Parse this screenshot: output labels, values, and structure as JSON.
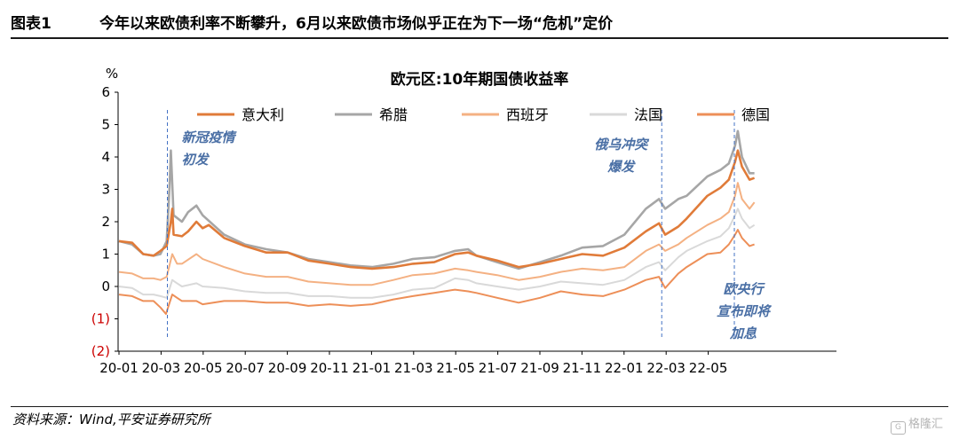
{
  "header": {
    "figure_number": "图表1",
    "figure_title": "今年以来欧债利率不断攀升，6月以来欧债市场似乎正在为下一场“危机”定价"
  },
  "footer": {
    "source": "资料来源：Wind,平安证券研究所",
    "watermark": "格隆汇",
    "watermark_icon": "gelonghui-logo-icon"
  },
  "chart_data": {
    "type": "line",
    "title": "欧元区:10年期国债收益率",
    "ylabel": "%",
    "ylim": [
      -2,
      6
    ],
    "yticks": [
      {
        "v": 6,
        "label": "6",
        "red": false
      },
      {
        "v": 5,
        "label": "5",
        "red": false
      },
      {
        "v": 4,
        "label": "4",
        "red": false
      },
      {
        "v": 3,
        "label": "3",
        "red": false
      },
      {
        "v": 2,
        "label": "2",
        "red": false
      },
      {
        "v": 1,
        "label": "1",
        "red": false
      },
      {
        "v": 0,
        "label": "0",
        "red": false
      },
      {
        "v": -1,
        "label": "(1)",
        "red": true
      },
      {
        "v": -2,
        "label": "(2)",
        "red": true
      }
    ],
    "xticks": [
      "20-01",
      "20-03",
      "20-05",
      "20-07",
      "20-09",
      "20-11",
      "21-01",
      "21-03",
      "21-05",
      "21-07",
      "21-09",
      "21-11",
      "22-01",
      "22-03",
      "22-05"
    ],
    "x_range": [
      "2020-01",
      "2022-07"
    ],
    "legend_position": "top",
    "grid": false,
    "series": [
      {
        "name": "意大利",
        "color": "#e07b39",
        "width": 2.6,
        "points": [
          [
            "2020-01-01",
            1.4
          ],
          [
            "2020-01-20",
            1.35
          ],
          [
            "2020-02-05",
            1.0
          ],
          [
            "2020-02-20",
            0.95
          ],
          [
            "2020-03-01",
            1.1
          ],
          [
            "2020-03-10",
            1.25
          ],
          [
            "2020-03-16",
            2.0
          ],
          [
            "2020-03-18",
            2.4
          ],
          [
            "2020-03-20",
            1.6
          ],
          [
            "2020-04-01",
            1.55
          ],
          [
            "2020-04-10",
            1.7
          ],
          [
            "2020-04-22",
            2.0
          ],
          [
            "2020-05-01",
            1.8
          ],
          [
            "2020-05-10",
            1.9
          ],
          [
            "2020-06-01",
            1.5
          ],
          [
            "2020-07-01",
            1.25
          ],
          [
            "2020-08-01",
            1.05
          ],
          [
            "2020-09-01",
            1.05
          ],
          [
            "2020-10-01",
            0.8
          ],
          [
            "2020-11-01",
            0.7
          ],
          [
            "2020-12-01",
            0.6
          ],
          [
            "2021-01-01",
            0.55
          ],
          [
            "2021-02-01",
            0.6
          ],
          [
            "2021-03-01",
            0.7
          ],
          [
            "2021-04-01",
            0.75
          ],
          [
            "2021-05-01",
            1.0
          ],
          [
            "2021-05-20",
            1.05
          ],
          [
            "2021-06-01",
            0.95
          ],
          [
            "2021-07-01",
            0.8
          ],
          [
            "2021-08-01",
            0.6
          ],
          [
            "2021-09-01",
            0.7
          ],
          [
            "2021-10-01",
            0.85
          ],
          [
            "2021-11-01",
            1.0
          ],
          [
            "2021-12-01",
            0.95
          ],
          [
            "2022-01-01",
            1.2
          ],
          [
            "2022-02-01",
            1.7
          ],
          [
            "2022-02-20",
            1.95
          ],
          [
            "2022-03-01",
            1.6
          ],
          [
            "2022-03-20",
            1.85
          ],
          [
            "2022-04-01",
            2.1
          ],
          [
            "2022-05-01",
            2.8
          ],
          [
            "2022-05-20",
            3.05
          ],
          [
            "2022-06-01",
            3.3
          ],
          [
            "2022-06-10",
            3.85
          ],
          [
            "2022-06-14",
            4.2
          ],
          [
            "2022-06-20",
            3.7
          ],
          [
            "2022-07-01",
            3.3
          ],
          [
            "2022-07-08",
            3.35
          ]
        ]
      },
      {
        "name": "希腊",
        "color": "#a6a6a6",
        "width": 2.6,
        "points": [
          [
            "2020-01-01",
            1.4
          ],
          [
            "2020-01-20",
            1.3
          ],
          [
            "2020-02-05",
            1.0
          ],
          [
            "2020-02-20",
            0.95
          ],
          [
            "2020-03-01",
            1.0
          ],
          [
            "2020-03-10",
            1.4
          ],
          [
            "2020-03-14",
            3.0
          ],
          [
            "2020-03-16",
            4.2
          ],
          [
            "2020-03-20",
            2.2
          ],
          [
            "2020-04-01",
            2.0
          ],
          [
            "2020-04-10",
            2.3
          ],
          [
            "2020-04-22",
            2.5
          ],
          [
            "2020-05-01",
            2.2
          ],
          [
            "2020-06-01",
            1.6
          ],
          [
            "2020-07-01",
            1.3
          ],
          [
            "2020-08-01",
            1.15
          ],
          [
            "2020-09-01",
            1.05
          ],
          [
            "2020-10-01",
            0.85
          ],
          [
            "2020-11-01",
            0.75
          ],
          [
            "2020-12-01",
            0.65
          ],
          [
            "2021-01-01",
            0.6
          ],
          [
            "2021-02-01",
            0.7
          ],
          [
            "2021-03-01",
            0.85
          ],
          [
            "2021-04-01",
            0.9
          ],
          [
            "2021-05-01",
            1.1
          ],
          [
            "2021-05-20",
            1.15
          ],
          [
            "2021-06-01",
            0.95
          ],
          [
            "2021-07-01",
            0.75
          ],
          [
            "2021-08-01",
            0.55
          ],
          [
            "2021-09-01",
            0.75
          ],
          [
            "2021-10-01",
            0.95
          ],
          [
            "2021-11-01",
            1.2
          ],
          [
            "2021-12-01",
            1.25
          ],
          [
            "2022-01-01",
            1.6
          ],
          [
            "2022-02-01",
            2.4
          ],
          [
            "2022-02-20",
            2.7
          ],
          [
            "2022-03-01",
            2.4
          ],
          [
            "2022-03-20",
            2.7
          ],
          [
            "2022-04-01",
            2.8
          ],
          [
            "2022-05-01",
            3.4
          ],
          [
            "2022-05-20",
            3.6
          ],
          [
            "2022-06-01",
            3.8
          ],
          [
            "2022-06-10",
            4.35
          ],
          [
            "2022-06-14",
            4.8
          ],
          [
            "2022-06-20",
            4.0
          ],
          [
            "2022-07-01",
            3.5
          ],
          [
            "2022-07-08",
            3.5
          ]
        ]
      },
      {
        "name": "西班牙",
        "color": "#f4b183",
        "width": 2.0,
        "points": [
          [
            "2020-01-01",
            0.45
          ],
          [
            "2020-01-20",
            0.4
          ],
          [
            "2020-02-05",
            0.25
          ],
          [
            "2020-02-20",
            0.25
          ],
          [
            "2020-03-01",
            0.2
          ],
          [
            "2020-03-10",
            0.3
          ],
          [
            "2020-03-18",
            1.0
          ],
          [
            "2020-03-25",
            0.7
          ],
          [
            "2020-04-01",
            0.7
          ],
          [
            "2020-04-22",
            1.0
          ],
          [
            "2020-05-01",
            0.85
          ],
          [
            "2020-06-01",
            0.6
          ],
          [
            "2020-07-01",
            0.4
          ],
          [
            "2020-08-01",
            0.3
          ],
          [
            "2020-09-01",
            0.3
          ],
          [
            "2020-10-01",
            0.15
          ],
          [
            "2020-11-01",
            0.1
          ],
          [
            "2020-12-01",
            0.05
          ],
          [
            "2021-01-01",
            0.05
          ],
          [
            "2021-02-01",
            0.2
          ],
          [
            "2021-03-01",
            0.35
          ],
          [
            "2021-04-01",
            0.4
          ],
          [
            "2021-05-01",
            0.55
          ],
          [
            "2021-05-20",
            0.5
          ],
          [
            "2021-06-01",
            0.45
          ],
          [
            "2021-07-01",
            0.35
          ],
          [
            "2021-08-01",
            0.2
          ],
          [
            "2021-09-01",
            0.3
          ],
          [
            "2021-10-01",
            0.45
          ],
          [
            "2021-11-01",
            0.55
          ],
          [
            "2021-12-01",
            0.5
          ],
          [
            "2022-01-01",
            0.6
          ],
          [
            "2022-02-01",
            1.1
          ],
          [
            "2022-02-20",
            1.3
          ],
          [
            "2022-03-01",
            1.1
          ],
          [
            "2022-03-20",
            1.3
          ],
          [
            "2022-04-01",
            1.5
          ],
          [
            "2022-05-01",
            1.9
          ],
          [
            "2022-05-20",
            2.1
          ],
          [
            "2022-06-01",
            2.3
          ],
          [
            "2022-06-10",
            2.8
          ],
          [
            "2022-06-14",
            3.2
          ],
          [
            "2022-06-20",
            2.7
          ],
          [
            "2022-07-01",
            2.4
          ],
          [
            "2022-07-08",
            2.6
          ]
        ]
      },
      {
        "name": "法国",
        "color": "#d9d9d9",
        "width": 2.0,
        "points": [
          [
            "2020-01-01",
            0.0
          ],
          [
            "2020-01-20",
            -0.05
          ],
          [
            "2020-02-05",
            -0.25
          ],
          [
            "2020-02-20",
            -0.25
          ],
          [
            "2020-03-01",
            -0.3
          ],
          [
            "2020-03-10",
            -0.35
          ],
          [
            "2020-03-18",
            0.2
          ],
          [
            "2020-03-25",
            0.1
          ],
          [
            "2020-04-01",
            0.0
          ],
          [
            "2020-04-22",
            0.1
          ],
          [
            "2020-05-01",
            0.0
          ],
          [
            "2020-06-01",
            -0.05
          ],
          [
            "2020-07-01",
            -0.15
          ],
          [
            "2020-08-01",
            -0.2
          ],
          [
            "2020-09-01",
            -0.2
          ],
          [
            "2020-10-01",
            -0.3
          ],
          [
            "2020-11-01",
            -0.3
          ],
          [
            "2020-12-01",
            -0.35
          ],
          [
            "2021-01-01",
            -0.35
          ],
          [
            "2021-02-01",
            -0.25
          ],
          [
            "2021-03-01",
            -0.1
          ],
          [
            "2021-04-01",
            -0.05
          ],
          [
            "2021-05-01",
            0.25
          ],
          [
            "2021-05-20",
            0.2
          ],
          [
            "2021-06-01",
            0.1
          ],
          [
            "2021-07-01",
            0.0
          ],
          [
            "2021-08-01",
            -0.1
          ],
          [
            "2021-09-01",
            0.0
          ],
          [
            "2021-10-01",
            0.15
          ],
          [
            "2021-11-01",
            0.1
          ],
          [
            "2021-12-01",
            0.05
          ],
          [
            "2022-01-01",
            0.2
          ],
          [
            "2022-02-01",
            0.6
          ],
          [
            "2022-02-20",
            0.75
          ],
          [
            "2022-03-01",
            0.5
          ],
          [
            "2022-03-20",
            0.9
          ],
          [
            "2022-04-01",
            1.1
          ],
          [
            "2022-05-01",
            1.4
          ],
          [
            "2022-05-20",
            1.55
          ],
          [
            "2022-06-01",
            1.8
          ],
          [
            "2022-06-10",
            2.2
          ],
          [
            "2022-06-14",
            2.4
          ],
          [
            "2022-06-20",
            2.1
          ],
          [
            "2022-07-01",
            1.8
          ],
          [
            "2022-07-08",
            1.9
          ]
        ]
      },
      {
        "name": "德国",
        "color": "#ed8f58",
        "width": 2.0,
        "points": [
          [
            "2020-01-01",
            -0.25
          ],
          [
            "2020-01-20",
            -0.3
          ],
          [
            "2020-02-05",
            -0.45
          ],
          [
            "2020-02-20",
            -0.45
          ],
          [
            "2020-03-01",
            -0.65
          ],
          [
            "2020-03-09",
            -0.85
          ],
          [
            "2020-03-18",
            -0.25
          ],
          [
            "2020-03-25",
            -0.35
          ],
          [
            "2020-04-01",
            -0.45
          ],
          [
            "2020-04-22",
            -0.45
          ],
          [
            "2020-05-01",
            -0.55
          ],
          [
            "2020-06-01",
            -0.45
          ],
          [
            "2020-07-01",
            -0.45
          ],
          [
            "2020-08-01",
            -0.5
          ],
          [
            "2020-09-01",
            -0.5
          ],
          [
            "2020-10-01",
            -0.6
          ],
          [
            "2020-11-01",
            -0.55
          ],
          [
            "2020-12-01",
            -0.6
          ],
          [
            "2021-01-01",
            -0.55
          ],
          [
            "2021-02-01",
            -0.4
          ],
          [
            "2021-03-01",
            -0.3
          ],
          [
            "2021-04-01",
            -0.2
          ],
          [
            "2021-05-01",
            -0.1
          ],
          [
            "2021-05-20",
            -0.15
          ],
          [
            "2021-06-01",
            -0.2
          ],
          [
            "2021-07-01",
            -0.35
          ],
          [
            "2021-08-01",
            -0.5
          ],
          [
            "2021-09-01",
            -0.35
          ],
          [
            "2021-10-01",
            -0.15
          ],
          [
            "2021-11-01",
            -0.25
          ],
          [
            "2021-12-01",
            -0.3
          ],
          [
            "2022-01-01",
            -0.1
          ],
          [
            "2022-02-01",
            0.2
          ],
          [
            "2022-02-20",
            0.3
          ],
          [
            "2022-03-01",
            -0.05
          ],
          [
            "2022-03-20",
            0.4
          ],
          [
            "2022-04-01",
            0.6
          ],
          [
            "2022-05-01",
            1.0
          ],
          [
            "2022-05-20",
            1.05
          ],
          [
            "2022-06-01",
            1.3
          ],
          [
            "2022-06-10",
            1.6
          ],
          [
            "2022-06-14",
            1.75
          ],
          [
            "2022-06-20",
            1.5
          ],
          [
            "2022-07-01",
            1.25
          ],
          [
            "2022-07-08",
            1.3
          ]
        ]
      }
    ],
    "annotations": [
      {
        "date": "2020-03-11",
        "lines": [
          "新冠疫情",
          "初发"
        ]
      },
      {
        "date": "2022-02-24",
        "lines": [
          "俄乌冲突",
          "爆发"
        ]
      },
      {
        "date": "2022-06-09",
        "lines": [
          "欧央行",
          "宣布即将",
          "加息"
        ]
      }
    ]
  }
}
